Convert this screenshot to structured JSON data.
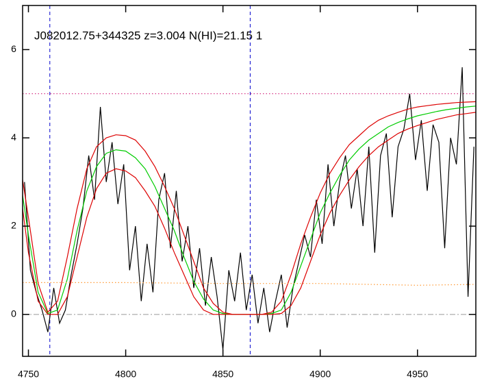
{
  "chart_data": {
    "type": "line",
    "title": "J082012.75+344325 z=3.004 N(HI)=21.15 1",
    "xlim": [
      4747,
      4980
    ],
    "ylim": [
      -0.95,
      7
    ],
    "xticks": [
      4750,
      4800,
      4850,
      4900,
      4950
    ],
    "yticks": [
      0,
      2,
      4,
      6
    ],
    "series": [
      {
        "color": "#000000",
        "style": "solid",
        "x": [
          4748,
          4751,
          4754,
          4757,
          4760,
          4763,
          4766,
          4769,
          4772,
          4775,
          4778,
          4781,
          4784,
          4787,
          4790,
          4793,
          4796,
          4799,
          4802,
          4805,
          4808,
          4811,
          4814,
          4817,
          4820,
          4823,
          4826,
          4829,
          4832,
          4835,
          4838,
          4841,
          4844,
          4847,
          4850,
          4853,
          4856,
          4859,
          4862,
          4865,
          4868,
          4871,
          4874,
          4877,
          4880,
          4883,
          4886,
          4889,
          4892,
          4895,
          4898,
          4901,
          4904,
          4907,
          4910,
          4913,
          4916,
          4919,
          4922,
          4925,
          4928,
          4931,
          4934,
          4937,
          4940,
          4943,
          4946,
          4949,
          4952,
          4955,
          4958,
          4961,
          4964,
          4967,
          4970,
          4973,
          4976,
          4979
        ],
        "values": [
          3.0,
          1.0,
          0.5,
          0.1,
          -0.4,
          0.6,
          -0.2,
          0.1,
          0.9,
          1.6,
          2.4,
          3.6,
          2.6,
          4.7,
          3.0,
          3.9,
          2.5,
          3.4,
          1.0,
          2.0,
          0.3,
          1.6,
          0.5,
          2.6,
          3.2,
          1.5,
          2.8,
          1.2,
          2.0,
          0.6,
          1.5,
          0.2,
          1.3,
          0.4,
          -0.8,
          1.0,
          0.3,
          1.4,
          0.1,
          0.9,
          -0.2,
          0.6,
          -0.4,
          0.3,
          0.9,
          -0.3,
          0.6,
          1.2,
          1.8,
          1.3,
          2.6,
          1.6,
          3.4,
          2.0,
          3.0,
          3.6,
          2.4,
          3.3,
          2.0,
          3.8,
          1.4,
          3.6,
          4.1,
          2.2,
          3.8,
          4.2,
          5.0,
          3.5,
          4.4,
          2.8,
          4.3,
          3.9,
          1.5,
          4.0,
          3.4,
          5.6,
          0.4,
          3.8
        ]
      },
      {
        "color": "#00cc00",
        "style": "solid",
        "x": [
          4747,
          4750,
          4755,
          4760,
          4765,
          4770,
          4775,
          4780,
          4785,
          4790,
          4795,
          4800,
          4805,
          4810,
          4815,
          4820,
          4825,
          4830,
          4835,
          4840,
          4845,
          4850,
          4855,
          4860,
          4865,
          4870,
          4875,
          4880,
          4885,
          4890,
          4895,
          4900,
          4905,
          4910,
          4915,
          4920,
          4925,
          4930,
          4935,
          4940,
          4945,
          4950,
          4955,
          4960,
          4965,
          4970,
          4975,
          4980
        ],
        "values": [
          2.7,
          1.8,
          0.5,
          0.02,
          0.1,
          0.8,
          1.9,
          2.8,
          3.35,
          3.65,
          3.73,
          3.7,
          3.55,
          3.3,
          2.9,
          2.4,
          1.9,
          1.3,
          0.75,
          0.35,
          0.1,
          0.02,
          0,
          0,
          0,
          0,
          0.02,
          0.1,
          0.5,
          1.1,
          1.7,
          2.3,
          2.75,
          3.15,
          3.5,
          3.75,
          3.95,
          4.1,
          4.25,
          4.35,
          4.43,
          4.5,
          4.55,
          4.6,
          4.64,
          4.67,
          4.7,
          4.72
        ]
      },
      {
        "color": "#dd0000",
        "style": "solid",
        "x": [
          4747,
          4750,
          4755,
          4760,
          4765,
          4770,
          4775,
          4780,
          4785,
          4790,
          4795,
          4800,
          4805,
          4810,
          4815,
          4820,
          4825,
          4830,
          4835,
          4840,
          4845,
          4850,
          4855,
          4860,
          4865,
          4870,
          4875,
          4880,
          4885,
          4890,
          4895,
          4900,
          4905,
          4910,
          4915,
          4920,
          4925,
          4930,
          4935,
          4940,
          4945,
          4950,
          4955,
          4960,
          4965,
          4970,
          4975,
          4980
        ],
        "values": [
          3.05,
          2.2,
          0.7,
          0.05,
          0.3,
          1.3,
          2.4,
          3.3,
          3.8,
          4.0,
          4.07,
          4.05,
          3.95,
          3.7,
          3.35,
          2.9,
          2.4,
          1.8,
          1.2,
          0.6,
          0.25,
          0.05,
          0,
          0,
          0,
          0,
          0.05,
          0.3,
          0.9,
          1.6,
          2.2,
          2.75,
          3.2,
          3.55,
          3.85,
          4.05,
          4.25,
          4.4,
          4.5,
          4.58,
          4.65,
          4.7,
          4.73,
          4.76,
          4.78,
          4.8,
          4.81,
          4.82
        ]
      },
      {
        "color": "#dd0000",
        "style": "solid",
        "x": [
          4747,
          4750,
          4755,
          4760,
          4765,
          4770,
          4775,
          4780,
          4785,
          4790,
          4795,
          4800,
          4805,
          4810,
          4815,
          4820,
          4825,
          4830,
          4835,
          4840,
          4845,
          4850,
          4855,
          4860,
          4865,
          4870,
          4875,
          4880,
          4885,
          4890,
          4895,
          4900,
          4905,
          4910,
          4915,
          4920,
          4925,
          4930,
          4935,
          4940,
          4945,
          4950,
          4955,
          4960,
          4965,
          4970,
          4975,
          4980
        ],
        "values": [
          2.4,
          1.4,
          0.3,
          0,
          0,
          0.4,
          1.3,
          2.2,
          2.85,
          3.2,
          3.3,
          3.25,
          3.1,
          2.8,
          2.45,
          1.95,
          1.4,
          0.9,
          0.4,
          0.1,
          0,
          0,
          0,
          0,
          0,
          0,
          0,
          0.02,
          0.2,
          0.6,
          1.2,
          1.8,
          2.3,
          2.7,
          3.05,
          3.35,
          3.6,
          3.8,
          3.95,
          4.1,
          4.2,
          4.28,
          4.35,
          4.42,
          4.47,
          4.52,
          4.55,
          4.58
        ]
      },
      {
        "color": "#ff9933",
        "style": "dotted",
        "x": [
          4747,
          4800,
          4850,
          4900,
          4950,
          4980
        ],
        "values": [
          0.72,
          0.72,
          0.7,
          0.7,
          0.66,
          0.68
        ]
      }
    ],
    "hlines": [
      {
        "value": 0,
        "color": "#999999",
        "style": "dashdot"
      },
      {
        "value": 5.0,
        "color": "#cc0066",
        "style": "dotted"
      }
    ],
    "vlines": [
      {
        "value": 4761,
        "color": "#0000cc",
        "style": "dashed"
      },
      {
        "value": 4864,
        "color": "#0000cc",
        "style": "dashed"
      }
    ]
  }
}
